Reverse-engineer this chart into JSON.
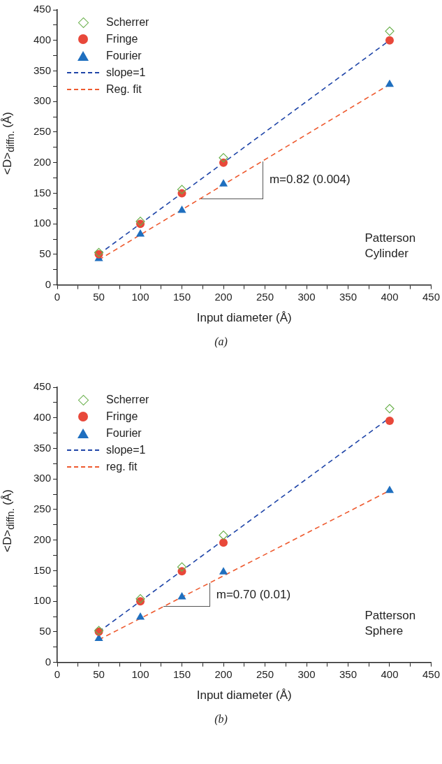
{
  "chart_data": [
    {
      "type": "scatter",
      "xlabel": "Input diameter (Å)",
      "ylabel": "<D>$_{diffn.}$ (Å)",
      "legend": "top left",
      "grid": false,
      "xlim": [
        0,
        450
      ],
      "ylim": [
        0,
        450
      ],
      "xticks": [
        0,
        {
          "value": 25,
          "label": null
        },
        50,
        {
          "value": 75,
          "label": null
        },
        100,
        {
          "value": 125,
          "label": null
        },
        150,
        {
          "value": 175,
          "label": null
        },
        200,
        {
          "value": 225,
          "label": null
        },
        250,
        {
          "value": 275,
          "label": null
        },
        300,
        {
          "value": 325,
          "label": null
        },
        350,
        {
          "value": 375,
          "label": null
        },
        400,
        {
          "value": 425,
          "label": null
        },
        450
      ],
      "yticks": [
        0,
        {
          "value": 25,
          "label": null
        },
        50,
        {
          "value": 75,
          "label": null
        },
        100,
        {
          "value": 125,
          "label": null
        },
        150,
        {
          "value": 175,
          "label": null
        },
        200,
        {
          "value": 225,
          "label": null
        },
        250,
        {
          "value": 275,
          "label": null
        },
        300,
        {
          "value": 325,
          "label": null
        },
        350,
        {
          "value": 375,
          "label": null
        },
        400,
        {
          "value": 425,
          "label": null
        },
        450
      ],
      "series": [
        {
          "name": "Scherrer",
          "type": "scatter",
          "marker": "diamond",
          "color": "#6ab04c",
          "x": [
            50,
            100,
            150,
            200,
            400
          ],
          "values": [
            53,
            104,
            156,
            208,
            415
          ]
        },
        {
          "name": "Fringe",
          "type": "scatter",
          "marker": "circle",
          "color": "#e8483a",
          "x": [
            50,
            100,
            150,
            200,
            400
          ],
          "values": [
            50,
            100,
            150,
            200,
            400
          ]
        },
        {
          "name": "Fourier",
          "type": "scatter",
          "marker": "triangle",
          "color": "#1f6fbf",
          "x": [
            50,
            100,
            150,
            200,
            400
          ],
          "values": [
            43,
            83,
            122,
            165,
            328
          ]
        },
        {
          "name": "slope=1",
          "type": "line",
          "line_style": "dashed",
          "color": "#1f45a8",
          "x": [
            50,
            400
          ],
          "values": [
            50,
            400
          ]
        },
        {
          "name": "Reg. fit",
          "type": "line",
          "line_style": "dashed",
          "color": "#ee5a2f",
          "x": [
            50,
            400
          ],
          "values": [
            41,
            328
          ]
        }
      ],
      "annotations": [
        {
          "text": "m=0.82 (0.004)",
          "x": 247,
          "y": 202
        },
        "Patterson\nCylinder",
        "(a)"
      ]
    },
    {
      "type": "scatter",
      "xlabel": "Input diameter (Å)",
      "ylabel": "<D>$_{diffn.}$ (Å)",
      "legend": "top left",
      "grid": false,
      "xlim": [
        0,
        450
      ],
      "ylim": [
        0,
        450
      ],
      "xticks": [
        0,
        {
          "value": 25,
          "label": null
        },
        50,
        {
          "value": 75,
          "label": null
        },
        100,
        {
          "value": 125,
          "label": null
        },
        150,
        {
          "value": 175,
          "label": null
        },
        200,
        {
          "value": 225,
          "label": null
        },
        250,
        {
          "value": 275,
          "label": null
        },
        300,
        {
          "value": 325,
          "label": null
        },
        350,
        {
          "value": 375,
          "label": null
        },
        400,
        {
          "value": 425,
          "label": null
        },
        450
      ],
      "yticks": [
        0,
        {
          "value": 25,
          "label": null
        },
        50,
        {
          "value": 75,
          "label": null
        },
        100,
        {
          "value": 125,
          "label": null
        },
        150,
        {
          "value": 175,
          "label": null
        },
        200,
        {
          "value": 225,
          "label": null
        },
        250,
        {
          "value": 275,
          "label": null
        },
        300,
        {
          "value": 325,
          "label": null
        },
        350,
        {
          "value": 375,
          "label": null
        },
        400,
        {
          "value": 425,
          "label": null
        },
        450
      ],
      "series": [
        {
          "name": "Scherrer",
          "type": "scatter",
          "marker": "diamond",
          "color": "#6ab04c",
          "x": [
            50,
            100,
            150,
            200,
            400
          ],
          "values": [
            52,
            104,
            156,
            208,
            415
          ]
        },
        {
          "name": "Fringe",
          "type": "scatter",
          "marker": "circle",
          "color": "#e8483a",
          "x": [
            50,
            100,
            150,
            200,
            400
          ],
          "values": [
            50,
            100,
            149,
            196,
            395
          ]
        },
        {
          "name": "Fourier",
          "type": "scatter",
          "marker": "triangle",
          "color": "#1f6fbf",
          "x": [
            50,
            100,
            150,
            200,
            400
          ],
          "values": [
            39,
            74,
            107,
            148,
            281
          ]
        },
        {
          "name": "slope=1",
          "type": "line",
          "line_style": "dashed",
          "color": "#1f45a8",
          "x": [
            50,
            400
          ],
          "values": [
            50,
            400
          ]
        },
        {
          "name": "reg. fit",
          "type": "line",
          "line_style": "dashed",
          "color": "#ee5a2f",
          "x": [
            50,
            400
          ],
          "values": [
            37,
            281
          ]
        }
      ],
      "annotations": [
        {
          "text": "m=0.70 (0.01)",
          "x": 183,
          "y": 130
        },
        "Patterson\nSphere",
        "(b)"
      ]
    }
  ]
}
